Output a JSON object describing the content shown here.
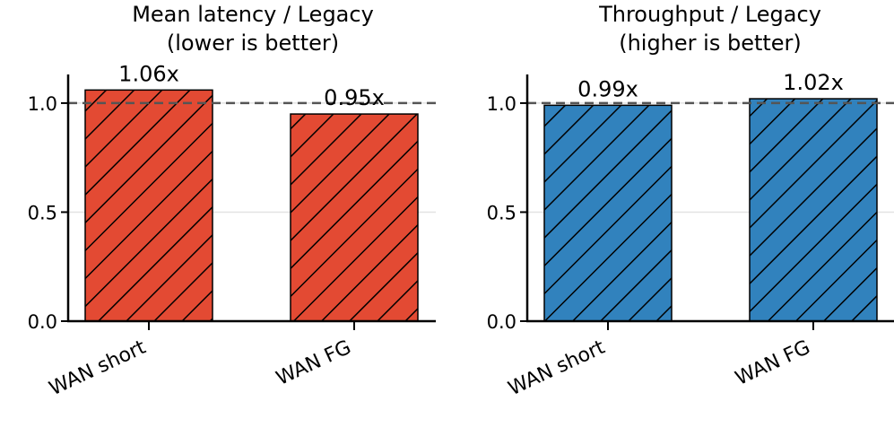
{
  "chart_data": [
    {
      "type": "bar",
      "title_lines": [
        "Mean latency / Legacy",
        "(lower is better)"
      ],
      "categories": [
        "WAN short",
        "WAN FG"
      ],
      "values": [
        1.06,
        0.95
      ],
      "value_labels": [
        "1.06x",
        "0.95x"
      ],
      "xlabel": "",
      "ylabel": "",
      "ylim": [
        0,
        1.3
      ],
      "yticks": [
        0.0,
        0.5,
        1.0
      ],
      "ytick_labels": [
        "0.0",
        "0.5",
        "1.0"
      ],
      "reference_line": 1.0,
      "grid": "horizontal",
      "bar_color": "#E34A33",
      "hatch": "diagonal"
    },
    {
      "type": "bar",
      "title_lines": [
        "Throughput / Legacy",
        "(higher is better)"
      ],
      "categories": [
        "WAN short",
        "WAN FG"
      ],
      "values": [
        0.99,
        1.02
      ],
      "value_labels": [
        "0.99x",
        "1.02x"
      ],
      "xlabel": "",
      "ylabel": "",
      "ylim": [
        0,
        1.3
      ],
      "yticks": [
        0.0,
        0.5,
        1.0
      ],
      "ytick_labels": [
        "0.0",
        "0.5",
        "1.0"
      ],
      "reference_line": 1.0,
      "grid": "horizontal",
      "bar_color": "#3182BD",
      "hatch": "diagonal"
    }
  ]
}
